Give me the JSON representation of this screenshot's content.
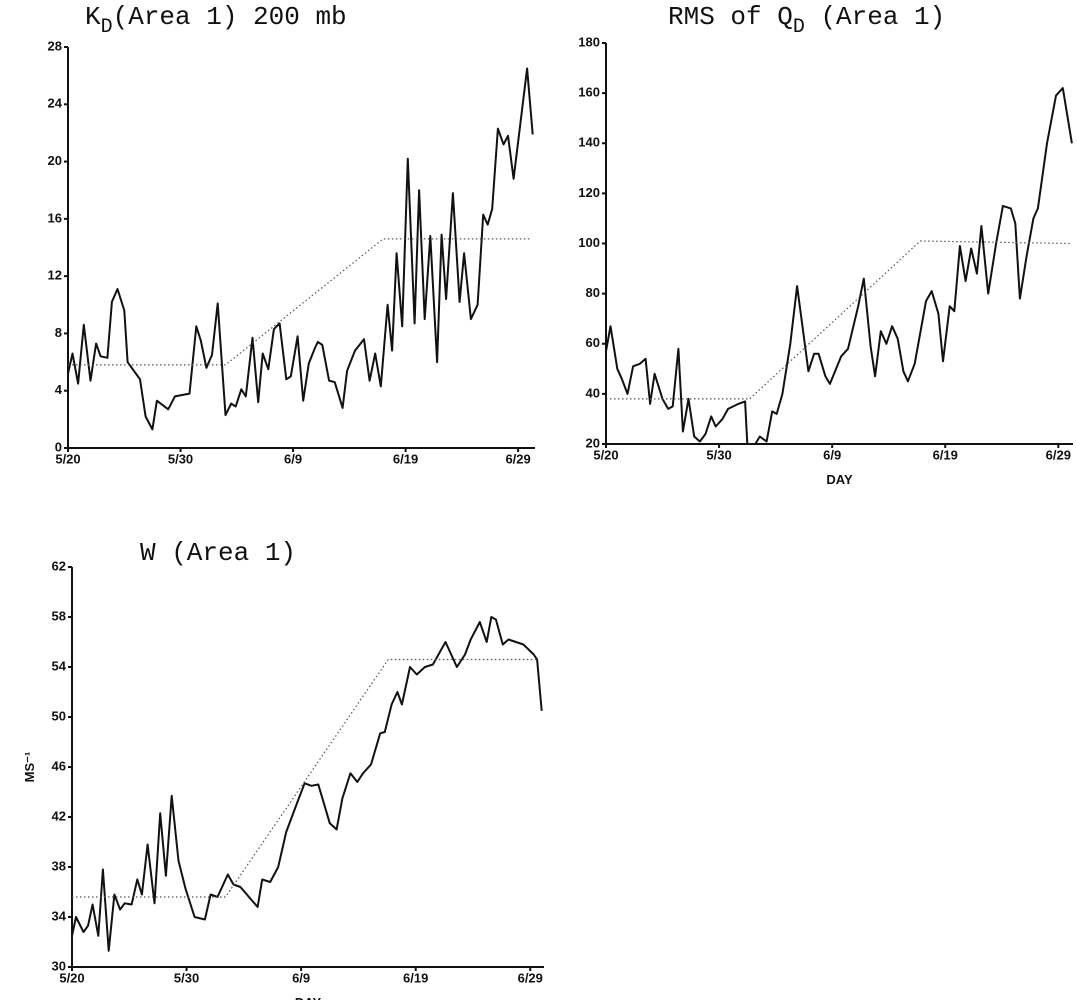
{
  "chart_data": [
    {
      "type": "line",
      "title": [
        {
          "text": "K"
        },
        {
          "text": "D",
          "sub": true
        },
        {
          "text": "(Area 1) 200 mb"
        }
      ],
      "xlim": [
        0,
        41.5
      ],
      "xticks": [
        {
          "value": 0,
          "label": "5/20"
        },
        {
          "value": 10,
          "label": "5/30"
        },
        {
          "value": 20,
          "label": "6/9"
        },
        {
          "value": 30,
          "label": "6/19"
        },
        {
          "value": 40,
          "label": "6/29"
        }
      ],
      "ylim": [
        0,
        28
      ],
      "yticks": [
        0,
        4,
        8,
        12,
        16,
        20,
        24,
        28
      ],
      "series": [
        {
          "color": "#111",
          "style": "solid",
          "x": [
            0,
            0.4,
            0.9,
            1.4,
            2.0,
            2.5,
            2.9,
            3.5,
            3.9,
            4.4,
            5.0,
            5.3,
            6.4,
            6.9,
            7.5,
            7.9,
            8.9,
            9.5,
            10.8,
            11.4,
            11.8,
            12.3,
            12.8,
            13.3,
            14.0,
            14.5,
            14.9,
            15.4,
            15.8,
            16.4,
            16.9,
            17.3,
            17.8,
            18.3,
            18.8,
            19.4,
            19.8,
            20.4,
            20.9,
            21.4,
            21.9,
            22.2,
            22.6,
            23.2,
            23.7,
            24.4,
            24.8,
            25.5,
            26.3,
            26.8,
            27.3,
            27.8,
            28.4,
            28.8,
            29.2,
            29.7,
            30.2,
            30.8,
            31.2,
            31.7,
            32.2,
            32.8,
            33.2,
            33.6,
            34.2,
            34.8,
            35.2,
            35.8,
            36.4,
            36.9,
            37.3,
            37.7,
            38.2,
            38.7,
            39.1,
            39.6,
            40.8,
            41.3
          ],
          "values": [
            5.2,
            6.6,
            4.5,
            8.6,
            4.7,
            7.3,
            6.4,
            6.3,
            10.2,
            11.1,
            9.6,
            6.0,
            4.8,
            2.2,
            1.3,
            3.3,
            2.7,
            3.6,
            3.8,
            8.5,
            7.5,
            5.6,
            6.5,
            10.1,
            2.3,
            3.1,
            2.9,
            4.1,
            3.6,
            7.7,
            3.2,
            6.6,
            5.5,
            8.3,
            8.7,
            4.8,
            5.0,
            7.8,
            3.3,
            5.9,
            6.9,
            7.4,
            7.2,
            4.7,
            4.6,
            2.8,
            5.4,
            6.8,
            7.6,
            4.7,
            6.6,
            4.3,
            10.0,
            6.8,
            13.6,
            8.5,
            20.2,
            8.7,
            18.0,
            9.0,
            14.8,
            6.0,
            14.9,
            10.4,
            17.8,
            10.2,
            13.6,
            9.0,
            10.0,
            16.3,
            15.6,
            16.7,
            22.3,
            21.2,
            21.8,
            18.8,
            26.5,
            21.9
          ]
        },
        {
          "color": "#555",
          "style": "dotted",
          "x": [
            0,
            14,
            28,
            41
          ],
          "values": [
            5.8,
            5.8,
            14.6,
            14.6
          ]
        }
      ]
    },
    {
      "type": "line",
      "title": [
        {
          "text": "RMS of Q"
        },
        {
          "text": "D",
          "sub": true
        },
        {
          "text": " (Area 1)"
        }
      ],
      "xlabel": "DAY",
      "xlim": [
        0,
        41.3
      ],
      "xticks": [
        {
          "value": 0,
          "label": "5/20"
        },
        {
          "value": 10,
          "label": "5/30"
        },
        {
          "value": 20,
          "label": "6/9"
        },
        {
          "value": 30,
          "label": "6/19"
        },
        {
          "value": 40,
          "label": "6/29"
        }
      ],
      "ylim": [
        20,
        180
      ],
      "yticks": [
        20,
        40,
        60,
        80,
        100,
        120,
        140,
        160,
        180
      ],
      "series": [
        {
          "color": "#111",
          "style": "solid",
          "x": [
            0,
            0.4,
            1.0,
            1.4,
            1.9,
            2.4,
            3.0,
            3.5,
            3.9,
            4.3,
            5.0,
            5.5,
            5.9,
            6.4,
            6.8,
            7.3,
            7.8,
            8.3,
            8.8,
            9.3,
            9.7,
            10.3,
            10.8,
            11.7,
            12.3,
            12.5,
            13.2,
            13.6,
            14.2,
            14.7,
            15.1,
            15.6,
            16.3,
            16.9,
            17.4,
            17.9,
            18.4,
            18.8,
            19.4,
            19.8,
            20.8,
            21.4,
            22.3,
            22.8,
            23.4,
            23.8,
            24.3,
            24.8,
            25.3,
            25.8,
            26.3,
            26.7,
            27.3,
            28.3,
            28.8,
            29.4,
            29.8,
            30.4,
            30.8,
            31.3,
            31.8,
            32.3,
            32.8,
            33.2,
            33.8,
            34.5,
            35.1,
            35.8,
            36.2,
            36.6,
            37.2,
            37.8,
            38.2,
            39.0,
            39.8,
            40.4,
            41.2
          ],
          "values": [
            57,
            67,
            50,
            46,
            40,
            51,
            52,
            54,
            36,
            48,
            38,
            34,
            35,
            58,
            25,
            38,
            23,
            21,
            24,
            31,
            27,
            30,
            34,
            36,
            37,
            20,
            20,
            23,
            21,
            33,
            32,
            40,
            60,
            83,
            66,
            49,
            56,
            56,
            47,
            44,
            55,
            58,
            75,
            86,
            59,
            47,
            65,
            60,
            67,
            62,
            49,
            45,
            52,
            77,
            81,
            72,
            53,
            75,
            73,
            99,
            85,
            98,
            88,
            107,
            80,
            100,
            115,
            114,
            108,
            78,
            95,
            110,
            114,
            140,
            159,
            162,
            140
          ]
        },
        {
          "color": "#555",
          "style": "dotted",
          "x": [
            0,
            12.7,
            27.8,
            41.2
          ],
          "values": [
            38,
            38,
            101,
            100
          ]
        }
      ]
    },
    {
      "type": "line",
      "title": [
        {
          "text": "W (Area 1)"
        }
      ],
      "xlabel": "DAY",
      "ylabel": "MS⁻¹",
      "xlim": [
        0,
        41.2
      ],
      "xticks": [
        {
          "value": 0,
          "label": "5/20"
        },
        {
          "value": 10,
          "label": "5/30"
        },
        {
          "value": 20,
          "label": "6/9"
        },
        {
          "value": 30,
          "label": "6/19"
        },
        {
          "value": 40,
          "label": "6/29"
        }
      ],
      "ylim": [
        30,
        62
      ],
      "yticks": [
        30,
        34,
        38,
        42,
        46,
        50,
        54,
        58,
        62
      ],
      "series": [
        {
          "color": "#111",
          "style": "solid",
          "x": [
            0,
            0.35,
            1.0,
            1.4,
            1.8,
            2.3,
            2.7,
            3.2,
            3.7,
            4.2,
            4.6,
            5.2,
            5.7,
            6.1,
            6.6,
            7.2,
            7.7,
            8.2,
            8.7,
            9.3,
            9.9,
            10.7,
            11.6,
            12.1,
            12.7,
            13.6,
            14.1,
            14.7,
            16.2,
            16.6,
            17.3,
            18.0,
            18.7,
            19.6,
            20.3,
            20.9,
            21.5,
            22.5,
            23.1,
            23.6,
            24.3,
            24.9,
            25.4,
            26.1,
            26.9,
            27.3,
            27.9,
            28.4,
            28.8,
            29.5,
            30.1,
            30.8,
            31.5,
            32.6,
            33.6,
            34.3,
            34.8,
            35.6,
            36.2,
            36.6,
            37.0,
            37.6,
            38.1,
            39.4,
            40.3,
            40.6,
            41.0
          ],
          "values": [
            32.5,
            34,
            32.8,
            33.3,
            35,
            32.5,
            37.8,
            31.3,
            35.8,
            34.6,
            35.1,
            35.0,
            37,
            35.8,
            39.8,
            35.1,
            42.3,
            37.3,
            43.7,
            38.5,
            36.3,
            34.0,
            33.8,
            35.8,
            35.6,
            37.4,
            36.6,
            36.4,
            34.8,
            37,
            36.8,
            38,
            40.8,
            43,
            44.7,
            44.5,
            44.6,
            41.5,
            41,
            43.5,
            45.5,
            44.8,
            45.5,
            46.2,
            48.7,
            48.8,
            51,
            52,
            51,
            54,
            53.4,
            54,
            54.2,
            56,
            54,
            55,
            56.2,
            57.6,
            56,
            58,
            57.8,
            55.8,
            56.2,
            55.8,
            55,
            54.6,
            50.5
          ]
        },
        {
          "color": "#555",
          "style": "dotted",
          "x": [
            0,
            13.4,
            27.6,
            40.6
          ],
          "values": [
            35.6,
            35.6,
            54.6,
            54.6
          ]
        }
      ]
    }
  ]
}
